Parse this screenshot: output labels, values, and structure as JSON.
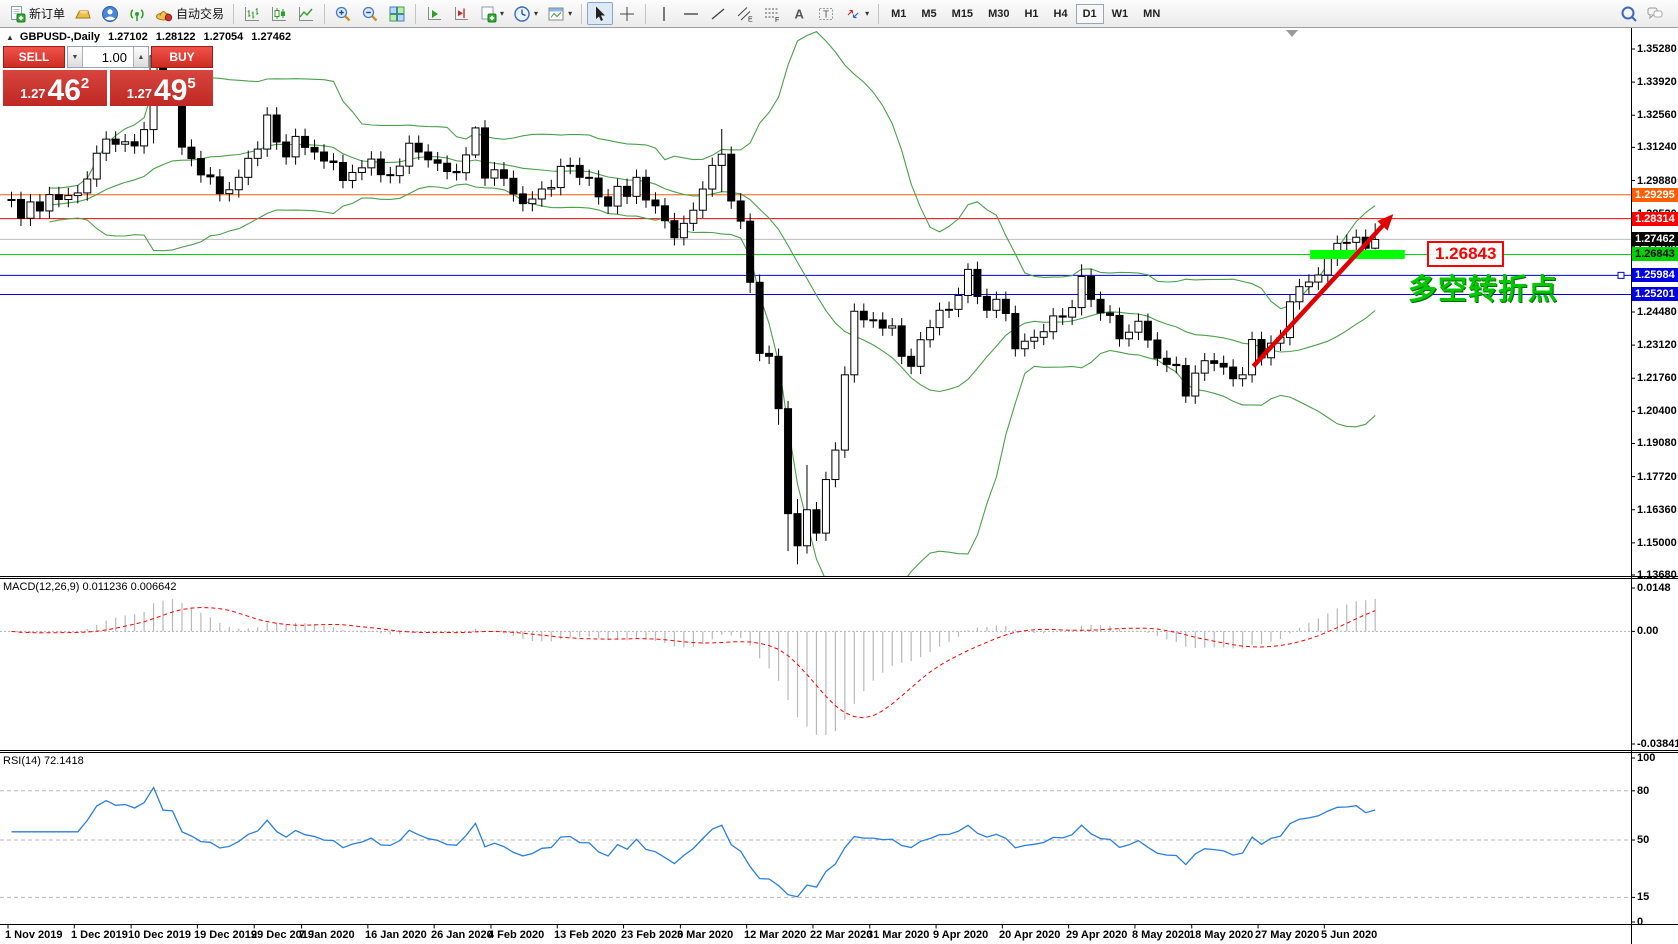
{
  "toolbar": {
    "new_order_label": "新订单",
    "autotrading_label": "自动交易",
    "timeframes": [
      "M1",
      "M5",
      "M15",
      "M30",
      "H1",
      "H4",
      "D1",
      "W1",
      "MN"
    ],
    "active_timeframe": "D1"
  },
  "chart_header": {
    "symbol_period": "GBPUSD-,Daily",
    "open": "1.27102",
    "high": "1.28122",
    "low": "1.27054",
    "close": "1.27462"
  },
  "trade_panel": {
    "sell_label": "SELL",
    "buy_label": "BUY",
    "volume": "1.00",
    "sell_price_prefix": "1.27",
    "sell_price_big": "46",
    "sell_price_sup": "2",
    "buy_price_prefix": "1.27",
    "buy_price_big": "49",
    "buy_price_sup": "5"
  },
  "indicators": {
    "macd_label": "MACD(12,26,9) 0.011236 0.006642",
    "rsi_label": "RSI(14) 72.1418"
  },
  "annotations": {
    "price_note": "1.26843",
    "turning_point_note": "多空转折点"
  },
  "chart_data": {
    "type": "candlestick",
    "symbol": "GBPUSD-",
    "timeframe": "Daily",
    "price_range": {
      "top_tick": 1.3528,
      "bottom_tick": 1.1368
    },
    "price_axis_ticks": [
      "1.35280",
      "1.33920",
      "1.32560",
      "1.31240",
      "1.29880",
      "1.28520",
      "1.27160",
      "1.25840",
      "1.24480",
      "1.23120",
      "1.21760",
      "1.20400",
      "1.19080",
      "1.17720",
      "1.16360",
      "1.15000",
      "1.13680"
    ],
    "price_levels": [
      {
        "price": 1.29295,
        "label": "1.29295",
        "color": "#ff5e00",
        "text": "#ffffff"
      },
      {
        "price": 1.28314,
        "label": "1.28314",
        "color": "#ff0000",
        "text": "#ffffff"
      },
      {
        "price": 1.27462,
        "label": "1.27462",
        "color": "#000000",
        "text": "#ffffff",
        "line_color": "#bdbdbd",
        "role": "bid"
      },
      {
        "price": 1.26843,
        "label": "1.26843",
        "color": "#00d400",
        "text": "#000000"
      },
      {
        "price": 1.25984,
        "label": "1.25984",
        "color": "#0000e0",
        "text": "#ffffff",
        "selected": true
      },
      {
        "price": 1.25201,
        "label": "1.25201",
        "color": "#0000e0",
        "text": "#ffffff"
      }
    ],
    "closes": [
      1.291,
      1.2833,
      1.29,
      1.2863,
      1.293,
      1.291,
      1.2926,
      1.2937,
      1.2994,
      1.31,
      1.3158,
      1.3137,
      1.3147,
      1.313,
      1.3197,
      1.35,
      1.3333,
      1.3326,
      1.3125,
      1.3078,
      1.3011,
      1.3003,
      1.2934,
      1.295,
      1.3001,
      1.3079,
      1.3117,
      1.3257,
      1.3146,
      1.3085,
      1.3169,
      1.3124,
      1.3105,
      1.3068,
      1.3062,
      1.2988,
      1.3021,
      1.304,
      1.3076,
      1.3012,
      1.3008,
      1.3047,
      1.3141,
      1.3105,
      1.3073,
      1.3059,
      1.3025,
      1.302,
      1.3093,
      1.3204,
      1.2998,
      1.3032,
      1.2997,
      1.2933,
      1.2893,
      1.2912,
      1.2953,
      1.2959,
      1.3046,
      1.305,
      1.3001,
      1.2998,
      1.2921,
      1.2883,
      1.2964,
      1.2923,
      1.3001,
      1.2908,
      1.2884,
      1.2823,
      1.2753,
      1.2812,
      1.2866,
      1.2953,
      1.305,
      1.3096,
      1.2904,
      1.2821,
      1.257,
      1.2278,
      1.2266,
      1.2051,
      1.162,
      1.1488,
      1.1636,
      1.154,
      1.176,
      1.1881,
      1.219,
      1.2451,
      1.2416,
      1.2415,
      1.2382,
      1.2391,
      1.2266,
      1.2225,
      1.2334,
      1.2384,
      1.2455,
      1.2459,
      1.2516,
      1.2623,
      1.2512,
      1.2455,
      1.25,
      1.2442,
      1.2297,
      1.2328,
      1.2344,
      1.2367,
      1.2432,
      1.2427,
      1.2466,
      1.2594,
      1.25,
      1.2444,
      1.2434,
      1.2338,
      1.2365,
      1.241,
      1.2333,
      1.2258,
      1.2233,
      1.2228,
      1.2103,
      1.2197,
      1.2248,
      1.2237,
      1.2222,
      1.2174,
      1.219,
      1.2335,
      1.226,
      1.232,
      1.2343,
      1.249,
      1.2552,
      1.2571,
      1.26,
      1.2669,
      1.273,
      1.2734,
      1.2755,
      1.271,
      1.2746
    ],
    "bar_overrides": {
      "15": {
        "h": 1.3514,
        "l": 1.314
      },
      "49": {
        "h": 1.321,
        "l": 1.308
      },
      "75": {
        "h": 1.32,
        "l": 1.294
      },
      "78": {
        "l": 1.2526
      },
      "81": {
        "l": 1.1985
      },
      "82": {
        "l": 1.1466
      },
      "83": {
        "h": 1.168,
        "l": 1.1412
      },
      "84": {
        "h": 1.182
      },
      "88": {
        "h": 1.2225
      },
      "101": {
        "h": 1.2648
      },
      "113": {
        "h": 1.2644
      },
      "124": {
        "l": 1.2075
      },
      "144": {
        "h": 1.28122,
        "l": 1.27054
      }
    },
    "default_wick": 0.0032,
    "bollinger": {
      "period": 20,
      "deviation": 2,
      "color": "#4ca04c"
    },
    "macd": {
      "fast": 12,
      "slow": 26,
      "signal": 9,
      "value": 0.011236,
      "signal_value": 0.006642,
      "axis_max": 0.0148,
      "axis_min": -0.038415,
      "axis_labels": [
        "0.0148",
        "0.00",
        "-0.038415"
      ],
      "hist_color": "#b8b8b8",
      "line_color": "#ff0000"
    },
    "rsi": {
      "period": 14,
      "value": 72.1418,
      "color": "#2a7fde",
      "levels": [
        80,
        50,
        15
      ],
      "axis_labels": [
        "100",
        "80",
        "50",
        "15",
        "0"
      ]
    },
    "date_labels": [
      {
        "label": "1 Nov 2019",
        "bar": 0
      },
      {
        "label": "1 Dec 2019",
        "bar": 7
      },
      {
        "label": "10 Dec 2019",
        "bar": 13
      },
      {
        "label": "19 Dec 2019",
        "bar": 20
      },
      {
        "label": "29 Dec 2019",
        "bar": 26
      },
      {
        "label": "7 Jan 2020",
        "bar": 31
      },
      {
        "label": "16 Jan 2020",
        "bar": 38
      },
      {
        "label": "26 Jan 2020",
        "bar": 45
      },
      {
        "label": "4 Feb 2020",
        "bar": 51
      },
      {
        "label": "13 Feb 2020",
        "bar": 58
      },
      {
        "label": "23 Feb 2020",
        "bar": 65
      },
      {
        "label": "3 Mar 2020",
        "bar": 71
      },
      {
        "label": "12 Mar 2020",
        "bar": 78
      },
      {
        "label": "22 Mar 2020",
        "bar": 85
      },
      {
        "label": "31 Mar 2020",
        "bar": 91
      },
      {
        "label": "9 Apr 2020",
        "bar": 98
      },
      {
        "label": "20 Apr 2020",
        "bar": 105
      },
      {
        "label": "29 Apr 2020",
        "bar": 112
      },
      {
        "label": "8 May 2020",
        "bar": 119
      },
      {
        "label": "18 May 2020",
        "bar": 125
      },
      {
        "label": "27 May 2020",
        "bar": 132
      },
      {
        "label": "5 Jun 2020",
        "bar": 139
      }
    ],
    "trend_arrow": {
      "from_bar": 131.5,
      "from_price": 1.2225,
      "to_bar": 146,
      "to_price": 1.2838,
      "color": "#e00000"
    },
    "green_bar_mark": {
      "from_bar": 137.5,
      "to_bar": 147.5,
      "price": 1.26843,
      "color": "#00ff00",
      "thickness": 9
    }
  }
}
